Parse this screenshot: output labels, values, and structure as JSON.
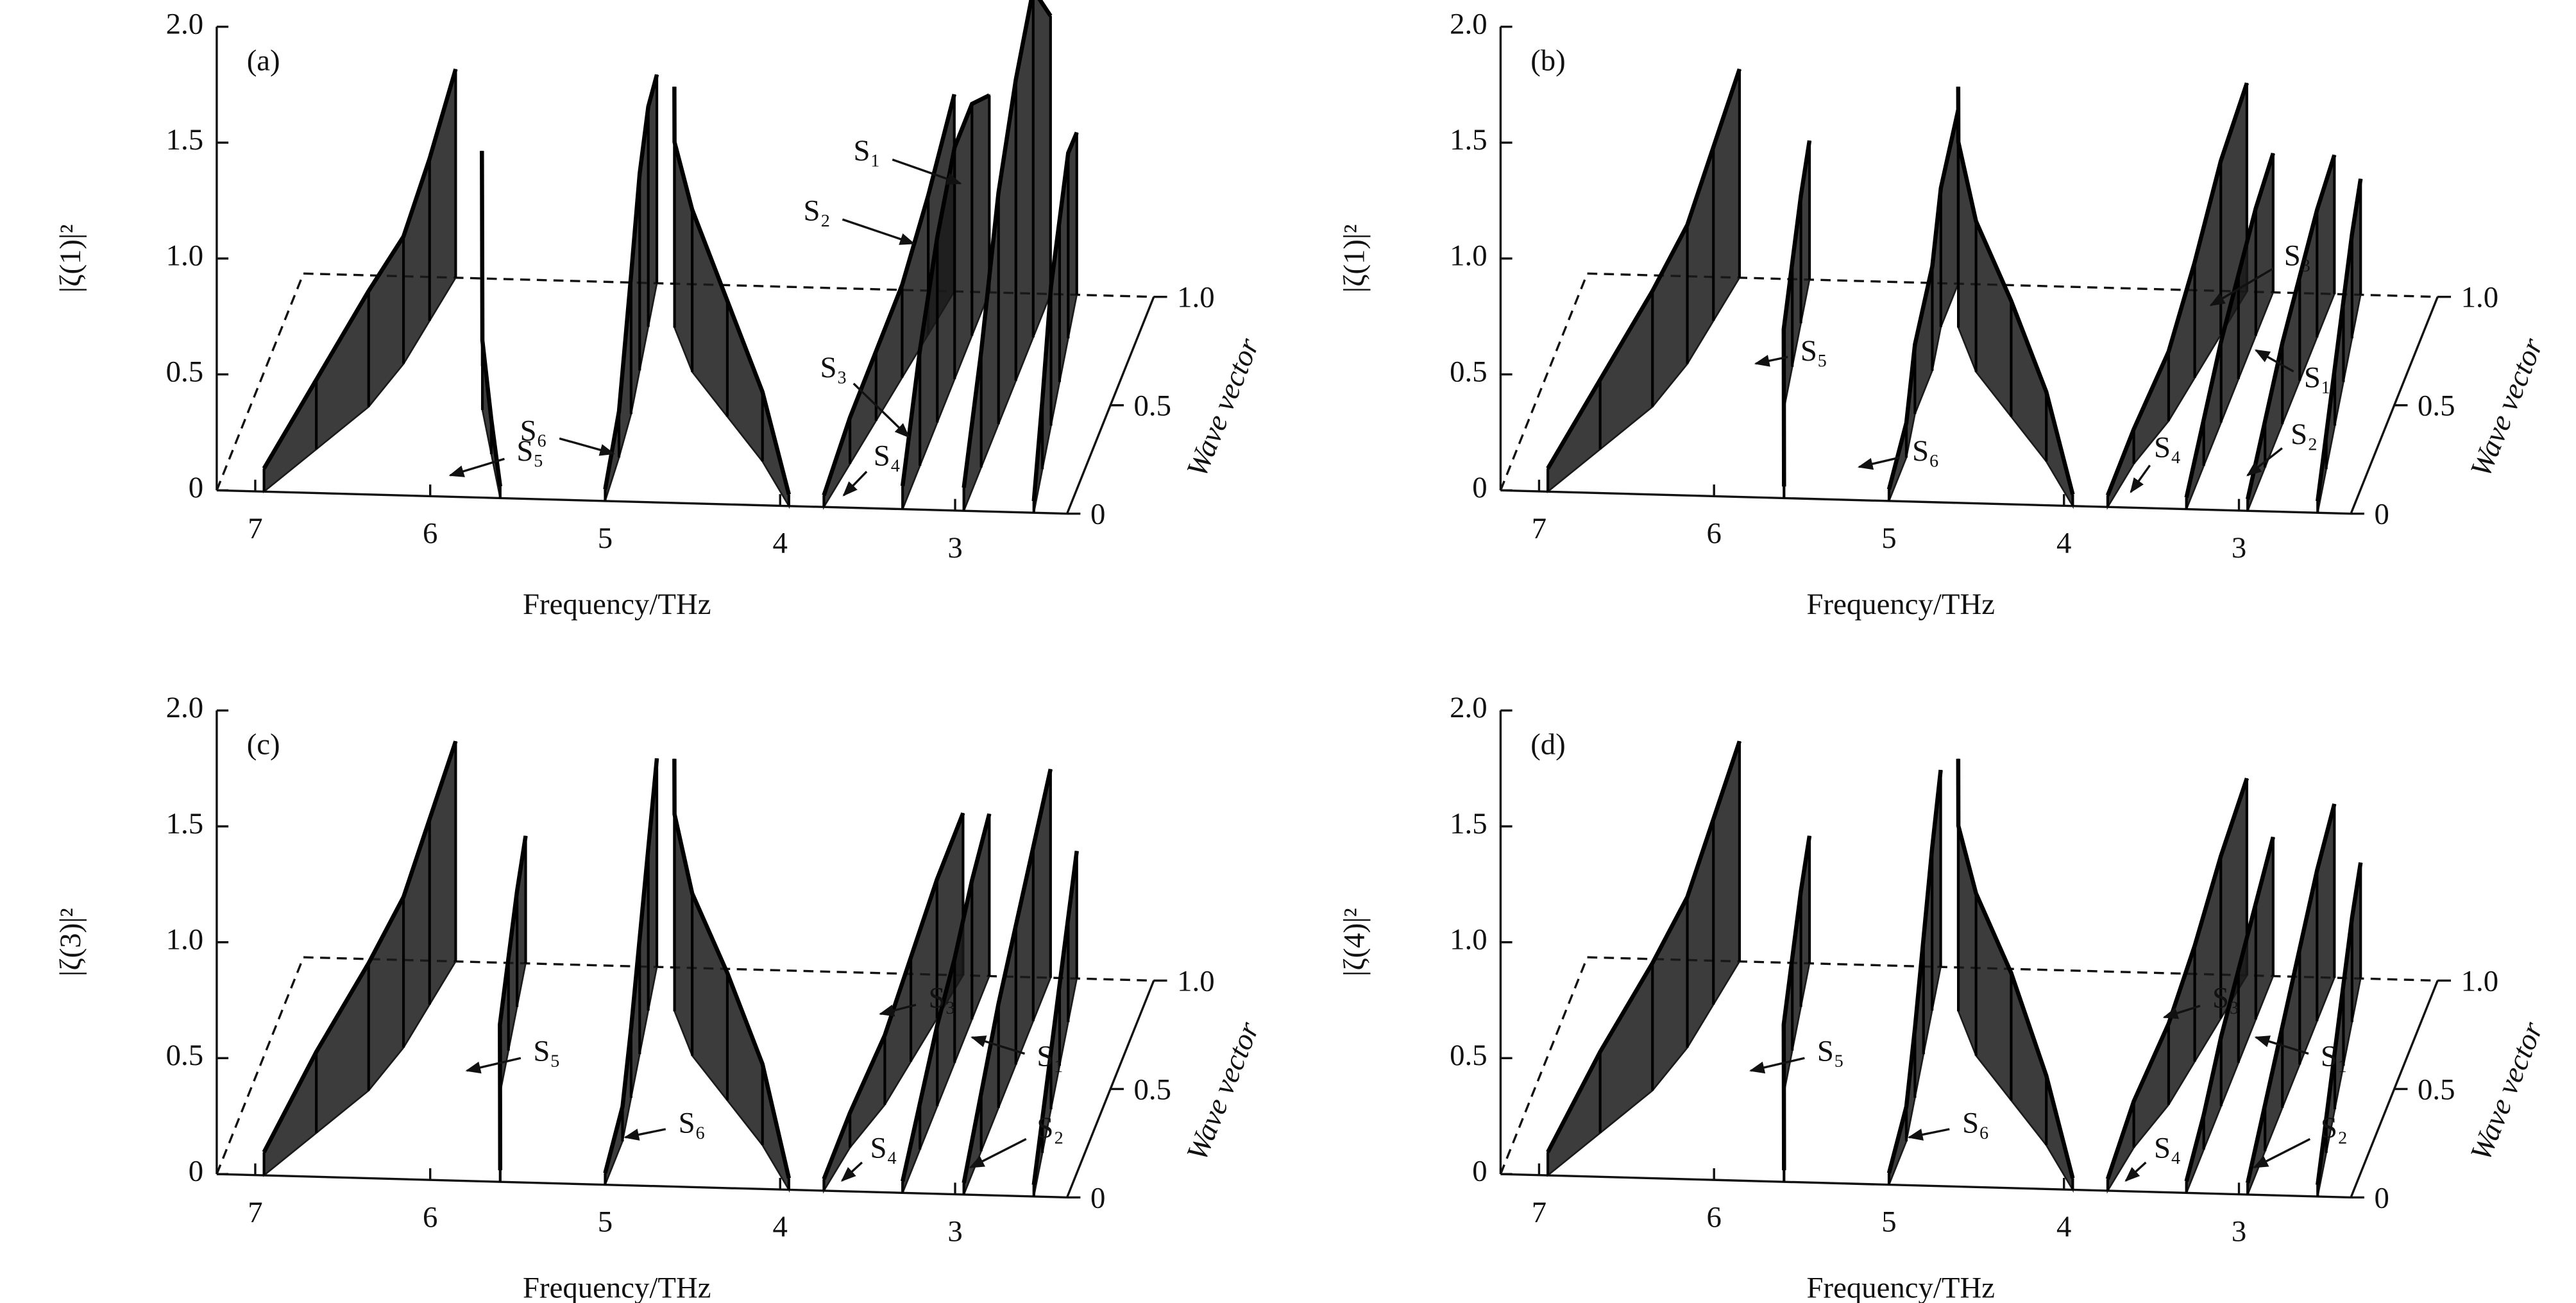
{
  "chart_data": [
    {
      "type": "waterfall3d",
      "panel_label": "(a)",
      "ylabel": "|ζ(1)|²",
      "xlabel": "Frequency/THz",
      "zlabel": "Wave vector",
      "color": "#1a1a1a",
      "xlim": [
        7.22,
        2.36
      ],
      "ylim": [
        0,
        2
      ],
      "zlim": [
        0,
        1
      ],
      "xticks": [
        7,
        6,
        5,
        4,
        3
      ],
      "yticks": [
        0,
        0.5,
        {
          "value": 1,
          "label": "1.0"
        },
        1.5,
        {
          "value": 2,
          "label": "2.0"
        }
      ],
      "zticks": [
        0,
        0.5,
        {
          "value": 1,
          "label": "1.0"
        }
      ],
      "wave_vector": [
        0,
        0.2,
        0.4,
        0.6,
        0.8,
        1
      ],
      "series": [
        {
          "frequency": [
            6.95,
            6.75,
            6.55,
            6.45,
            6.4,
            6.35
          ],
          "values": [
            0.1,
            0.3,
            0.5,
            0.55,
            0.7,
            0.9
          ]
        },
        {
          "frequency": [
            5.6,
            5.75,
            5.9,
            6.0,
            6.1,
            6.2
          ],
          "values": [
            0.05,
            0.15,
            0.3,
            0.4,
            0.5,
            0.55
          ]
        },
        {
          "frequency": [
            5.0,
            5.02,
            5.05,
            5.1,
            5.15,
            5.2
          ],
          "values": [
            0.05,
            0.2,
            0.6,
            0.85,
            0.95,
            0.9
          ]
        },
        {
          "frequency": [
            3.95,
            4.2,
            4.5,
            4.8,
            5.0,
            5.1
          ],
          "values": [
            0.05,
            0.3,
            0.5,
            0.7,
            0.8,
            0.85
          ]
        },
        {
          "frequency": [
            3.75,
            3.7,
            3.65,
            3.6,
            3.55,
            3.5
          ],
          "values": [
            0.05,
            0.2,
            0.3,
            0.4,
            0.6,
            0.85
          ]
        },
        {
          "frequency": [
            3.3,
            3.3,
            3.3,
            3.3,
            3.3,
            3.3
          ],
          "values": [
            0.1,
            0.5,
            0.8,
            1.0,
            1.0,
            0.85
          ]
        },
        {
          "frequency": [
            2.95,
            2.95,
            2.95,
            2.95,
            2.95,
            2.95
          ],
          "values": [
            0.1,
            0.5,
            1.0,
            1.3,
            1.5,
            1.2
          ]
        },
        {
          "frequency": [
            2.55,
            2.6,
            2.65,
            2.7,
            2.75,
            2.8
          ],
          "values": [
            0.05,
            0.3,
            0.6,
            0.7,
            0.8,
            0.7
          ]
        }
      ],
      "annotations": [
        "S₁",
        "S₂",
        "S₃",
        "S₄",
        "S₅",
        "S₆"
      ]
    },
    {
      "type": "waterfall3d",
      "panel_label": "(b)",
      "ylabel": "|ζ(1)|²",
      "xlabel": "Frequency/THz",
      "zlabel": "Wave vector",
      "color": "#1a1a1a",
      "xlim": [
        7.22,
        2.36
      ],
      "ylim": [
        0,
        2
      ],
      "zlim": [
        0,
        1
      ],
      "xticks": [
        7,
        6,
        5,
        4,
        3
      ],
      "yticks": [
        0,
        0.5,
        {
          "value": 1,
          "label": "1.0"
        },
        1.5,
        {
          "value": 2,
          "label": "2.0"
        }
      ],
      "zticks": [
        0,
        0.5,
        {
          "value": 1,
          "label": "1.0"
        }
      ],
      "wave_vector": [
        0,
        0.2,
        0.4,
        0.6,
        0.8,
        1
      ],
      "series": [
        {
          "frequency": [
            6.95,
            6.75,
            6.55,
            6.45,
            6.4,
            6.35
          ],
          "values": [
            0.1,
            0.3,
            0.5,
            0.6,
            0.75,
            0.9
          ]
        },
        {
          "frequency": [
            5.6,
            5.7,
            5.8,
            5.85,
            5.9,
            5.95
          ],
          "values": [
            0.05,
            0.2,
            0.35,
            0.45,
            0.55,
            0.6
          ]
        },
        {
          "frequency": [
            5.0,
            5.0,
            5.05,
            5.05,
            5.1,
            5.1
          ],
          "values": [
            0.05,
            0.15,
            0.3,
            0.45,
            0.6,
            0.75
          ]
        },
        {
          "frequency": [
            3.95,
            4.2,
            4.5,
            4.8,
            5.0,
            5.1
          ],
          "values": [
            0.05,
            0.3,
            0.5,
            0.65,
            0.8,
            0.85
          ]
        },
        {
          "frequency": [
            3.75,
            3.7,
            3.6,
            3.55,
            3.5,
            3.45
          ],
          "values": [
            0.05,
            0.15,
            0.3,
            0.5,
            0.75,
            0.9
          ]
        },
        {
          "frequency": [
            3.3,
            3.3,
            3.3,
            3.3,
            3.3,
            3.3
          ],
          "values": [
            0.05,
            0.2,
            0.35,
            0.45,
            0.55,
            0.6
          ]
        },
        {
          "frequency": [
            2.95,
            2.95,
            2.95,
            2.95,
            2.95,
            2.95
          ],
          "values": [
            0.05,
            0.2,
            0.35,
            0.45,
            0.55,
            0.6
          ]
        },
        {
          "frequency": [
            2.55,
            2.6,
            2.65,
            2.7,
            2.75,
            2.8
          ],
          "values": [
            0.05,
            0.15,
            0.25,
            0.35,
            0.45,
            0.5
          ]
        }
      ],
      "annotations": [
        "S₁",
        "S₂",
        "S₃",
        "S₄",
        "S₅",
        "S₆"
      ]
    },
    {
      "type": "waterfall3d",
      "panel_label": "(c)",
      "ylabel": "|ζ(3)|²",
      "xlabel": "Frequency/THz",
      "zlabel": "Wave vector",
      "color": "#1a1a1a",
      "xlim": [
        7.22,
        2.36
      ],
      "ylim": [
        0,
        2
      ],
      "zlim": [
        0,
        1
      ],
      "xticks": [
        7,
        6,
        5,
        4,
        3
      ],
      "yticks": [
        0,
        0.5,
        {
          "value": 1,
          "label": "1.0"
        },
        1.5,
        {
          "value": 2,
          "label": "2.0"
        }
      ],
      "zticks": [
        0,
        0.5,
        {
          "value": 1,
          "label": "1.0"
        }
      ],
      "wave_vector": [
        0,
        0.2,
        0.4,
        0.6,
        0.8,
        1
      ],
      "series": [
        {
          "frequency": [
            6.95,
            6.75,
            6.55,
            6.45,
            6.4,
            6.35
          ],
          "values": [
            0.1,
            0.35,
            0.55,
            0.65,
            0.8,
            0.95
          ]
        },
        {
          "frequency": [
            5.6,
            5.7,
            5.8,
            5.85,
            5.9,
            5.95
          ],
          "values": [
            0.05,
            0.2,
            0.3,
            0.4,
            0.5,
            0.55
          ]
        },
        {
          "frequency": [
            5.0,
            5.0,
            5.05,
            5.1,
            5.15,
            5.2
          ],
          "values": [
            0.05,
            0.15,
            0.3,
            0.5,
            0.7,
            0.9
          ]
        },
        {
          "frequency": [
            3.95,
            4.2,
            4.5,
            4.8,
            5.0,
            5.1
          ],
          "values": [
            0.05,
            0.35,
            0.55,
            0.7,
            0.85,
            0.9
          ]
        },
        {
          "frequency": [
            3.75,
            3.7,
            3.6,
            3.55,
            3.5,
            3.45
          ],
          "values": [
            0.05,
            0.15,
            0.3,
            0.45,
            0.6,
            0.7
          ]
        },
        {
          "frequency": [
            3.3,
            3.3,
            3.3,
            3.3,
            3.3,
            3.3
          ],
          "values": [
            0.05,
            0.2,
            0.35,
            0.45,
            0.6,
            0.7
          ]
        },
        {
          "frequency": [
            2.95,
            2.95,
            2.95,
            2.95,
            2.95,
            2.95
          ],
          "values": [
            0.05,
            0.25,
            0.45,
            0.6,
            0.75,
            0.9
          ]
        },
        {
          "frequency": [
            2.55,
            2.6,
            2.65,
            2.7,
            2.75,
            2.8
          ],
          "values": [
            0.05,
            0.15,
            0.25,
            0.35,
            0.45,
            0.55
          ]
        }
      ],
      "annotations": [
        "S₁",
        "S₂",
        "S₃",
        "S₄",
        "S₅",
        "S₆"
      ]
    },
    {
      "type": "waterfall3d",
      "panel_label": "(d)",
      "ylabel": "|ζ(4)|²",
      "xlabel": "Frequency/THz",
      "zlabel": "Wave vector",
      "color": "#1a1a1a",
      "xlim": [
        7.22,
        2.36
      ],
      "ylim": [
        0,
        2
      ],
      "zlim": [
        0,
        1
      ],
      "xticks": [
        7,
        6,
        5,
        4,
        3
      ],
      "yticks": [
        0,
        0.5,
        {
          "value": 1,
          "label": "1.0"
        },
        1.5,
        {
          "value": 2,
          "label": "2.0"
        }
      ],
      "zticks": [
        0,
        0.5,
        {
          "value": 1,
          "label": "1.0"
        }
      ],
      "wave_vector": [
        0,
        0.2,
        0.4,
        0.6,
        0.8,
        1
      ],
      "series": [
        {
          "frequency": [
            6.95,
            6.75,
            6.55,
            6.45,
            6.4,
            6.35
          ],
          "values": [
            0.1,
            0.35,
            0.55,
            0.65,
            0.8,
            0.95
          ]
        },
        {
          "frequency": [
            5.6,
            5.7,
            5.8,
            5.85,
            5.9,
            5.95
          ],
          "values": [
            0.05,
            0.2,
            0.3,
            0.4,
            0.5,
            0.55
          ]
        },
        {
          "frequency": [
            5.0,
            5.0,
            5.05,
            5.1,
            5.15,
            5.2
          ],
          "values": [
            0.05,
            0.15,
            0.3,
            0.5,
            0.7,
            0.85
          ]
        },
        {
          "frequency": [
            3.95,
            4.2,
            4.5,
            4.8,
            5.0,
            5.1
          ],
          "values": [
            0.05,
            0.3,
            0.55,
            0.7,
            0.8,
            0.9
          ]
        },
        {
          "frequency": [
            3.75,
            3.7,
            3.6,
            3.55,
            3.5,
            3.45
          ],
          "values": [
            0.05,
            0.2,
            0.35,
            0.5,
            0.7,
            0.85
          ]
        },
        {
          "frequency": [
            3.3,
            3.3,
            3.3,
            3.3,
            3.3,
            3.3
          ],
          "values": [
            0.05,
            0.15,
            0.3,
            0.4,
            0.5,
            0.6
          ]
        },
        {
          "frequency": [
            2.95,
            2.95,
            2.95,
            2.95,
            2.95,
            2.95
          ],
          "values": [
            0.05,
            0.2,
            0.35,
            0.5,
            0.65,
            0.75
          ]
        },
        {
          "frequency": [
            2.55,
            2.6,
            2.65,
            2.7,
            2.75,
            2.8
          ],
          "values": [
            0.05,
            0.15,
            0.25,
            0.35,
            0.45,
            0.5
          ]
        }
      ],
      "annotations": [
        "S₁",
        "S₂",
        "S₃",
        "S₄",
        "S₅",
        "S₆"
      ]
    }
  ]
}
